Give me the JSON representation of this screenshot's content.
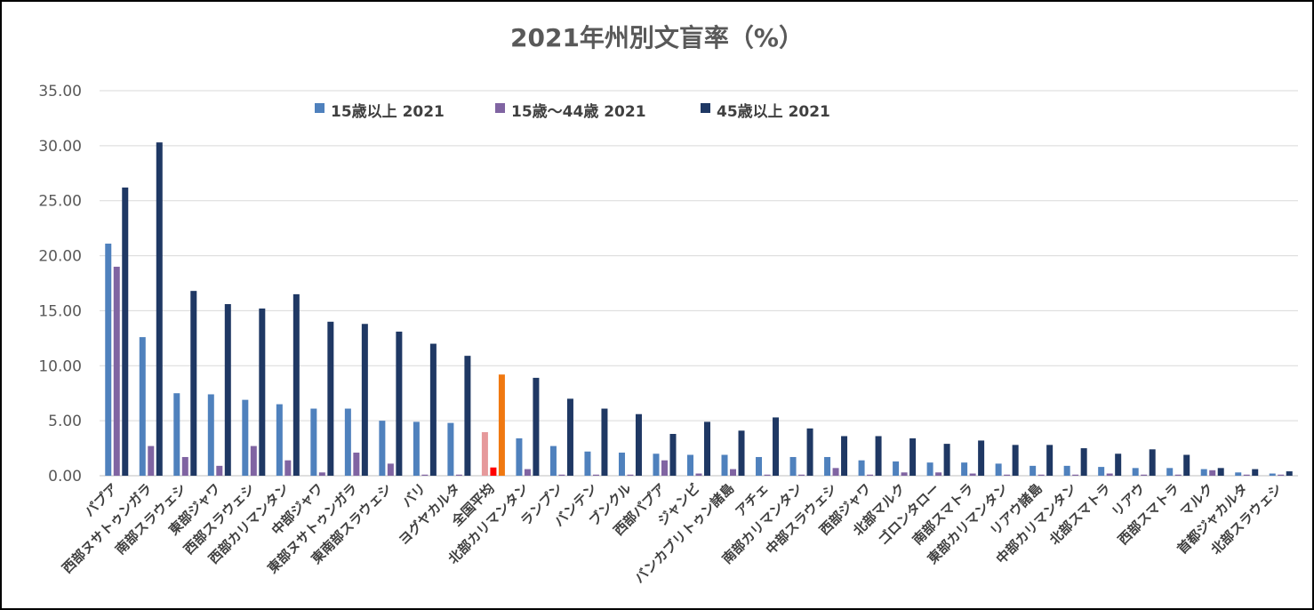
{
  "chart_data": {
    "type": "bar",
    "title": "2021年州別文盲率（%）",
    "ylim": [
      0,
      35
    ],
    "yticks": [
      "0.00",
      "5.00",
      "10.00",
      "15.00",
      "20.00",
      "25.00",
      "30.00",
      "35.00"
    ],
    "grid": true,
    "legend_position": "top-center",
    "categories": [
      "パプア",
      "西部ヌサトゥンガラ",
      "南部スラウェシ",
      "東部ジャワ",
      "西部スラウェシ",
      "西部カリマンタン",
      "中部ジャワ",
      "東部ヌサトゥンガラ",
      "東南部スラウェシ",
      "バリ",
      "ヨグヤカルタ",
      "全国平均",
      "北部カリマンタン",
      "ランプン",
      "バンテン",
      "ブンクル",
      "西部パプア",
      "ジャンビ",
      "バンカブリトゥン諸島",
      "アチェ",
      "南部カリマンタン",
      "中部スラウェシ",
      "西部ジャワ",
      "北部マルク",
      "ゴロンタロー",
      "南部スマトラ",
      "東部カリマンタン",
      "リアウ諸島",
      "中部カリマンタン",
      "北部スマトラ",
      "リアウ",
      "西部スマトラ",
      "マルク",
      "首都ジャカルタ",
      "北部スラウェシ"
    ],
    "series": [
      {
        "name": "15歳以上 2021",
        "color": "#4f81bd",
        "values": [
          21.1,
          12.6,
          7.5,
          7.4,
          6.9,
          6.5,
          6.1,
          6.1,
          5.0,
          4.9,
          4.8,
          3.96,
          3.4,
          2.7,
          2.2,
          2.1,
          2.0,
          1.9,
          1.9,
          1.7,
          1.7,
          1.7,
          1.4,
          1.3,
          1.2,
          1.2,
          1.1,
          0.9,
          0.9,
          0.8,
          0.7,
          0.7,
          0.6,
          0.3,
          0.2
        ]
      },
      {
        "name": "15歳～44歳 2021",
        "color": "#8064a2",
        "values": [
          19.0,
          2.7,
          1.7,
          0.9,
          2.7,
          1.4,
          0.3,
          2.1,
          1.1,
          0.1,
          0.1,
          0.75,
          0.6,
          0.1,
          0.1,
          0.1,
          1.4,
          0.2,
          0.6,
          0.1,
          0.1,
          0.7,
          0.1,
          0.3,
          0.3,
          0.2,
          0.1,
          0.1,
          0.1,
          0.2,
          0.1,
          0.1,
          0.5,
          0.1,
          0.1
        ]
      },
      {
        "name": "45歳以上 2021",
        "color": "#1f3864",
        "values": [
          26.2,
          30.3,
          16.8,
          15.6,
          15.2,
          16.5,
          14.0,
          13.8,
          13.1,
          12.0,
          10.9,
          9.2,
          8.9,
          7.0,
          6.1,
          5.6,
          3.8,
          4.9,
          4.1,
          5.3,
          4.3,
          3.6,
          3.6,
          3.4,
          2.9,
          3.2,
          2.8,
          2.8,
          2.5,
          2.0,
          2.4,
          1.9,
          0.7,
          0.6,
          0.4
        ]
      }
    ],
    "highlight": {
      "category": "全国平均",
      "colors": [
        "#e6999b",
        "#ff0000",
        "#f07810"
      ]
    }
  }
}
